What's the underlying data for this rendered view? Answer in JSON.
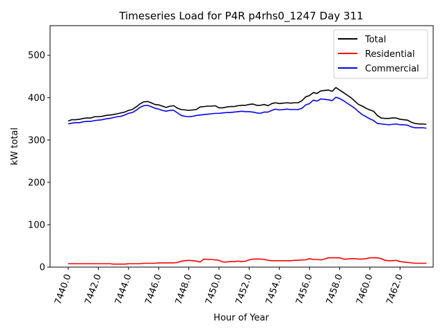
{
  "chart_data": {
    "type": "line",
    "title": "Timeseries Load for P4R p4rhs0_1247  Day 311",
    "xlabel": "Hour of Year",
    "ylabel": "kW total",
    "xlim": [
      7438.8,
      7464.2
    ],
    "ylim": [
      0,
      570
    ],
    "xticks": [
      7440,
      7442,
      7444,
      7446,
      7448,
      7450,
      7452,
      7454,
      7456,
      7458,
      7460,
      7462
    ],
    "xtick_labels": [
      "7440.0",
      "7442.0",
      "7444.0",
      "7446.0",
      "7448.0",
      "7450.0",
      "7452.0",
      "7454.0",
      "7456.0",
      "7458.0",
      "7460.0",
      "7462.0"
    ],
    "yticks": [
      0,
      100,
      200,
      300,
      400,
      500
    ],
    "ytick_labels": [
      "0",
      "100",
      "200",
      "300",
      "400",
      "500"
    ],
    "grid": false,
    "legend_position": "top-right",
    "x": [
      7440.0,
      7440.25,
      7440.5,
      7440.75,
      7441.0,
      7441.25,
      7441.5,
      7441.75,
      7442.0,
      7442.25,
      7442.5,
      7442.75,
      7443.0,
      7443.25,
      7443.5,
      7443.75,
      7444.0,
      7444.25,
      7444.5,
      7444.75,
      7445.0,
      7445.25,
      7445.5,
      7445.75,
      7446.0,
      7446.25,
      7446.5,
      7446.75,
      7447.0,
      7447.25,
      7447.5,
      7447.75,
      7448.0,
      7448.25,
      7448.5,
      7448.75,
      7449.0,
      7449.25,
      7449.5,
      7449.75,
      7450.0,
      7450.25,
      7450.5,
      7450.75,
      7451.0,
      7451.25,
      7451.5,
      7451.75,
      7452.0,
      7452.25,
      7452.5,
      7452.75,
      7453.0,
      7453.25,
      7453.5,
      7453.75,
      7454.0,
      7454.25,
      7454.5,
      7454.75,
      7455.0,
      7455.25,
      7455.5,
      7455.75,
      7456.0,
      7456.25,
      7456.5,
      7456.75,
      7457.0,
      7457.25,
      7457.5,
      7457.75,
      7458.0,
      7458.25,
      7458.5,
      7458.75,
      7459.0,
      7459.25,
      7459.5,
      7459.75,
      7460.0,
      7460.25,
      7460.5,
      7460.75,
      7461.0,
      7461.25,
      7461.5,
      7461.75,
      7462.0,
      7462.25,
      7462.5,
      7462.75,
      7463.0,
      7463.25,
      7463.5,
      7463.75
    ],
    "series": [
      {
        "name": "Total",
        "color": "#000000",
        "values": [
          345,
          348,
          348,
          349,
          351,
          352,
          352,
          355,
          355,
          356,
          358,
          359,
          360,
          362,
          364,
          366,
          370,
          372,
          378,
          385,
          390,
          391,
          388,
          384,
          383,
          380,
          377,
          380,
          381,
          375,
          372,
          371,
          370,
          371,
          372,
          378,
          379,
          380,
          380,
          381,
          376,
          376,
          378,
          379,
          379,
          381,
          382,
          382,
          384,
          385,
          382,
          382,
          384,
          381,
          386,
          388,
          386,
          387,
          388,
          387,
          388,
          388,
          393,
          402,
          405,
          412,
          410,
          416,
          417,
          418,
          415,
          424,
          418,
          412,
          406,
          400,
          392,
          384,
          380,
          375,
          371,
          368,
          358,
          352,
          351,
          351,
          352,
          352,
          349,
          348,
          347,
          342,
          339,
          338,
          338,
          337
        ]
      },
      {
        "name": "Residential",
        "color": "#ff0000",
        "values": [
          8,
          8,
          8,
          8,
          8,
          8,
          8,
          8,
          8,
          8,
          8,
          8,
          7,
          7,
          7,
          7,
          8,
          8,
          8,
          8,
          9,
          9,
          9,
          9,
          10,
          10,
          10,
          10,
          10,
          11,
          14,
          15,
          16,
          15,
          14,
          12,
          19,
          18,
          18,
          17,
          16,
          12,
          12,
          13,
          13,
          14,
          13,
          14,
          17,
          19,
          19,
          19,
          18,
          16,
          15,
          15,
          15,
          15,
          15,
          15,
          16,
          16,
          17,
          17,
          20,
          18,
          18,
          17,
          19,
          22,
          22,
          22,
          22,
          19,
          19,
          20,
          20,
          19,
          19,
          20,
          22,
          22,
          22,
          20,
          16,
          15,
          15,
          16,
          13,
          12,
          11,
          10,
          9,
          9,
          9,
          9
        ]
      },
      {
        "name": "Commercial",
        "color": "#0000ff",
        "values": [
          338,
          340,
          341,
          341,
          343,
          344,
          344,
          346,
          347,
          348,
          350,
          351,
          353,
          355,
          356,
          359,
          363,
          365,
          370,
          377,
          381,
          382,
          379,
          375,
          373,
          370,
          368,
          370,
          370,
          364,
          358,
          356,
          355,
          356,
          358,
          359,
          360,
          361,
          362,
          363,
          363,
          364,
          365,
          365,
          366,
          367,
          368,
          367,
          367,
          366,
          364,
          363,
          366,
          366,
          370,
          373,
          371,
          372,
          373,
          372,
          372,
          372,
          375,
          383,
          386,
          394,
          392,
          397,
          396,
          395,
          393,
          401,
          398,
          393,
          387,
          381,
          375,
          367,
          360,
          355,
          350,
          346,
          339,
          338,
          337,
          336,
          337,
          338,
          336,
          336,
          335,
          331,
          329,
          329,
          329,
          328
        ]
      }
    ]
  }
}
